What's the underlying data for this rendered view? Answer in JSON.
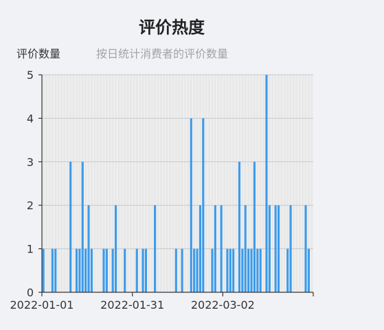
{
  "chart_data": {
    "type": "bar",
    "title": "评价热度",
    "ylabel": "评价数量",
    "subtitle": "按日统计消费者的评价数量",
    "xlabel": "",
    "ylim": [
      0,
      5
    ],
    "yticks": [
      0,
      1,
      2,
      3,
      4,
      5
    ],
    "x_start": "2022-01-01",
    "x_end": "2022-03-31",
    "xtick_labels": [
      "2022-01-01",
      "2022-01-31",
      "2022-03-02"
    ],
    "legend": "none",
    "grid": true,
    "colors": {
      "bar": "#3d9be9",
      "plot_bg": "#e8e8e8",
      "grid": "#c8c8c8",
      "stripe": "#f4f4f4"
    },
    "categories": [
      "2022-01-01",
      "2022-01-02",
      "2022-01-03",
      "2022-01-04",
      "2022-01-05",
      "2022-01-06",
      "2022-01-07",
      "2022-01-08",
      "2022-01-09",
      "2022-01-10",
      "2022-01-11",
      "2022-01-12",
      "2022-01-13",
      "2022-01-14",
      "2022-01-15",
      "2022-01-16",
      "2022-01-17",
      "2022-01-18",
      "2022-01-19",
      "2022-01-20",
      "2022-01-21",
      "2022-01-22",
      "2022-01-23",
      "2022-01-24",
      "2022-01-25",
      "2022-01-26",
      "2022-01-27",
      "2022-01-28",
      "2022-01-29",
      "2022-01-30",
      "2022-01-31",
      "2022-02-01",
      "2022-02-02",
      "2022-02-03",
      "2022-02-04",
      "2022-02-05",
      "2022-02-06",
      "2022-02-07",
      "2022-02-08",
      "2022-02-09",
      "2022-02-10",
      "2022-02-11",
      "2022-02-12",
      "2022-02-13",
      "2022-02-14",
      "2022-02-15",
      "2022-02-16",
      "2022-02-17",
      "2022-02-18",
      "2022-02-19",
      "2022-02-20",
      "2022-02-21",
      "2022-02-22",
      "2022-02-23",
      "2022-02-24",
      "2022-02-25",
      "2022-02-26",
      "2022-02-27",
      "2022-02-28",
      "2022-03-01",
      "2022-03-02",
      "2022-03-03",
      "2022-03-04",
      "2022-03-05",
      "2022-03-06",
      "2022-03-07",
      "2022-03-08",
      "2022-03-09",
      "2022-03-10",
      "2022-03-11",
      "2022-03-12",
      "2022-03-13",
      "2022-03-14",
      "2022-03-15",
      "2022-03-16",
      "2022-03-17",
      "2022-03-18",
      "2022-03-19",
      "2022-03-20",
      "2022-03-21",
      "2022-03-22",
      "2022-03-23",
      "2022-03-24",
      "2022-03-25",
      "2022-03-26",
      "2022-03-27",
      "2022-03-28",
      "2022-03-29",
      "2022-03-30",
      "2022-03-31"
    ],
    "values": [
      1,
      0,
      0,
      1,
      1,
      0,
      0,
      0,
      0,
      3,
      0,
      1,
      1,
      3,
      1,
      2,
      1,
      0,
      0,
      0,
      1,
      1,
      0,
      1,
      2,
      0,
      0,
      1,
      0,
      0,
      0,
      1,
      0,
      1,
      1,
      0,
      0,
      2,
      0,
      0,
      0,
      0,
      0,
      0,
      1,
      0,
      1,
      0,
      0,
      4,
      1,
      1,
      2,
      4,
      0,
      0,
      1,
      2,
      0,
      2,
      0,
      1,
      1,
      1,
      0,
      3,
      1,
      2,
      1,
      1,
      3,
      1,
      1,
      0,
      5,
      2,
      0,
      2,
      2,
      0,
      0,
      1,
      2,
      0,
      0,
      0,
      0,
      2,
      1,
      0
    ]
  }
}
